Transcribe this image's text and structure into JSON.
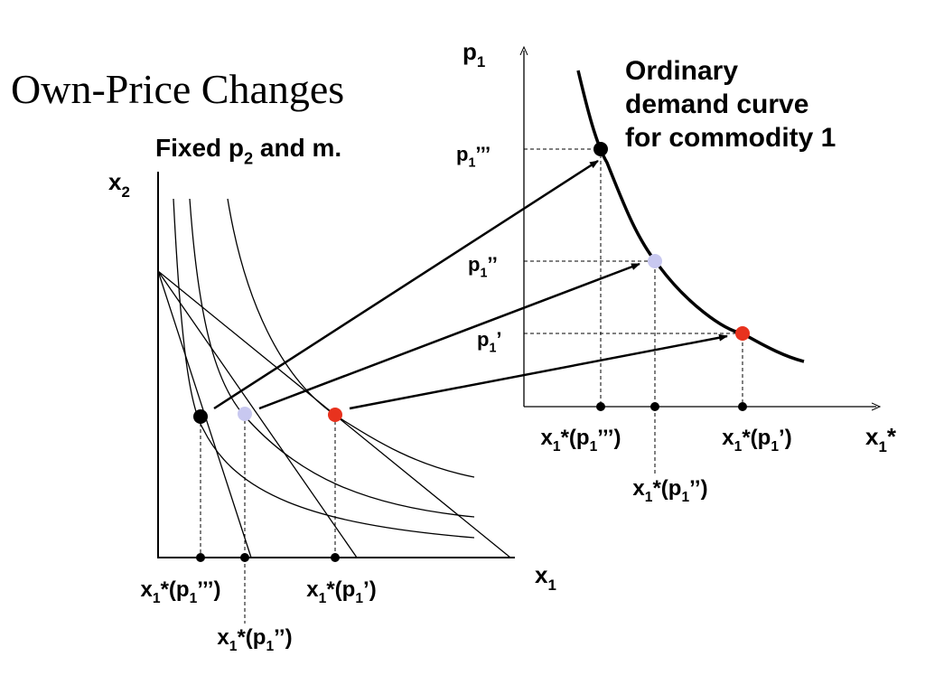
{
  "title": "Own-Price Changes",
  "subtitle": [
    "Fixed p",
    "2",
    " and m."
  ],
  "left_diagram": {
    "y_axis": [
      "x",
      "2"
    ],
    "x_axis": [
      "x",
      "1"
    ],
    "tick_labels": [
      [
        "x",
        "1",
        "*(p",
        "1",
        "’’’)"
      ],
      [
        "x",
        "1",
        "*(p",
        "1",
        "’’)"
      ],
      [
        "x",
        "1",
        "*(p",
        "1",
        "’)"
      ]
    ]
  },
  "right_diagram": {
    "y_axis": [
      "p",
      "1"
    ],
    "x_axis": [
      "x",
      "1",
      "*"
    ],
    "price_labels": [
      [
        "p",
        "1",
        "’’’"
      ],
      [
        "p",
        "1",
        "’’"
      ],
      [
        "p",
        "1",
        "’"
      ]
    ],
    "quantity_labels": [
      [
        "x",
        "1",
        "*(p",
        "1",
        "’’’)"
      ],
      [
        "x",
        "1",
        "*(p",
        "1",
        "’’)"
      ],
      [
        "x",
        "1",
        "*(p",
        "1",
        "’)"
      ]
    ],
    "curve_label": [
      "Ordinary",
      "demand curve",
      "for commodity 1"
    ]
  }
}
